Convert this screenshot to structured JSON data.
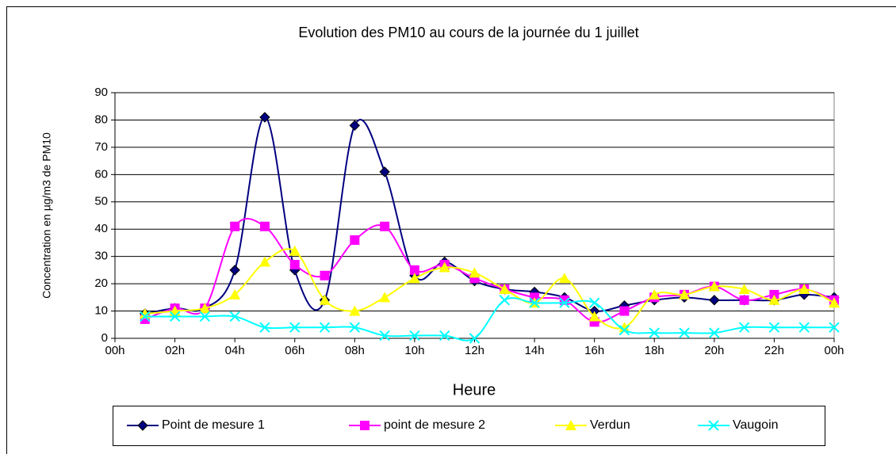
{
  "chart_data": {
    "type": "line",
    "title": "Evolution des PM10 au cours de la journée du 1 juillet",
    "x_label": "Heure",
    "y_label": "Concentration en µg/m3 de PM10",
    "x": [
      1,
      2,
      3,
      4,
      5,
      6,
      7,
      8,
      9,
      10,
      11,
      12,
      13,
      14,
      15,
      16,
      17,
      18,
      19,
      20,
      21,
      22,
      23,
      24
    ],
    "xlim": [
      0,
      24
    ],
    "xticks": [
      {
        "value": 0,
        "label": "00h"
      },
      {
        "value": 2,
        "label": "02h"
      },
      {
        "value": 4,
        "label": "04h"
      },
      {
        "value": 6,
        "label": "06h"
      },
      {
        "value": 8,
        "label": "08h"
      },
      {
        "value": 10,
        "label": "10h"
      },
      {
        "value": 12,
        "label": "12h"
      },
      {
        "value": 14,
        "label": "14h"
      },
      {
        "value": 16,
        "label": "16h"
      },
      {
        "value": 18,
        "label": "18h"
      },
      {
        "value": 20,
        "label": "20h"
      },
      {
        "value": 22,
        "label": "22h"
      },
      {
        "value": 24,
        "label": "00h"
      }
    ],
    "ylim": [
      0,
      90
    ],
    "yticks": [
      0,
      10,
      20,
      30,
      40,
      50,
      60,
      70,
      80,
      90
    ],
    "grid": true,
    "smooth": true,
    "legend": "bottom",
    "series": [
      {
        "name": "Point de mesure 1",
        "color": "#000080",
        "marker": "diamond",
        "values": [
          9,
          11,
          11,
          25,
          81,
          25,
          14,
          78,
          61,
          23,
          28,
          21,
          18,
          17,
          15,
          10,
          12,
          14,
          15,
          14,
          14,
          14,
          16,
          15
        ]
      },
      {
        "name": "point de mesure 2",
        "color": "#ff00ff",
        "marker": "square",
        "values": [
          7,
          11,
          11,
          41,
          41,
          27,
          23,
          36,
          41,
          25,
          27,
          22,
          18,
          15,
          14,
          6,
          10,
          15,
          16,
          19,
          14,
          16,
          18,
          14
        ]
      },
      {
        "name": "Verdun",
        "color": "#ffff00",
        "marker": "triangle",
        "values": [
          9,
          10,
          11,
          16,
          28,
          32,
          14,
          10,
          15,
          22,
          26,
          24,
          18,
          13,
          22,
          8,
          4,
          16,
          16,
          19,
          18,
          14,
          18,
          13
        ]
      },
      {
        "name": "Vaugoin",
        "color": "#00ffff",
        "marker": "x",
        "values": [
          8,
          8,
          8,
          8,
          4,
          4,
          4,
          4,
          1,
          1,
          1,
          0,
          14,
          13,
          13,
          13,
          3,
          2,
          2,
          2,
          4,
          4,
          4,
          4
        ]
      }
    ]
  }
}
